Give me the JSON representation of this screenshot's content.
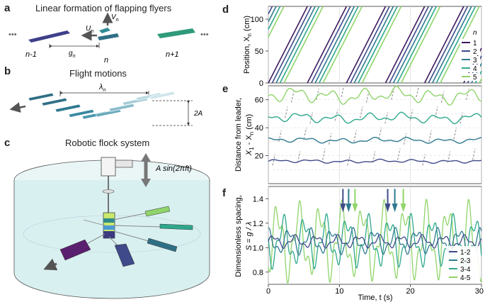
{
  "panels": {
    "a": {
      "letter": "a",
      "title": "Linear formation of flapping flyers",
      "u_label": "U",
      "v_label": "V",
      "g_label": "g",
      "n_left": "n-1",
      "n_mid": "n",
      "n_right": "n+1",
      "sub": "n",
      "ellipsis": "•••"
    },
    "b": {
      "letter": "b",
      "title": "Flight motions",
      "lambda": "λ",
      "lambda_sub": "n",
      "amp": "2A"
    },
    "c": {
      "letter": "c",
      "title": "Robotic flock system",
      "forcing": "A sin(2πft)"
    },
    "d": {
      "letter": "d",
      "ylabel": "Position, X",
      "ylabel_sub": "n",
      "ylabel_unit": " (cm)"
    },
    "e": {
      "letter": "e",
      "ylabel": "Distance from leader,",
      "ylabel2": "X",
      "ylabel2_rest": " - X",
      "ylabel2_unit": " (cm)"
    },
    "f": {
      "letter": "f",
      "ylabel": "Dimensionless spacing,",
      "ylabel2": "S = g / λ",
      "xlabel": "Time, t (s)"
    }
  },
  "colors": {
    "c1": "#3d1a5e",
    "c2": "#3f4a8a",
    "c3": "#2f7a90",
    "c4": "#2ea88c",
    "c5": "#8fd46a",
    "dash": "#a8a8a8",
    "grid": "#d9d9d9",
    "tank": "#d9f0f0"
  },
  "chart_data": [
    {
      "panel": "d",
      "type": "line",
      "xlim": [
        0,
        30
      ],
      "ylim": [
        0,
        120
      ],
      "xticks": [
        0,
        10,
        20,
        30
      ],
      "yticks": [
        0,
        50,
        100
      ],
      "legend_title": "n",
      "legend_position": "bottom-right",
      "wrap_period_s": 5.5,
      "series": [
        {
          "name": "1",
          "offset_s": 0.0
        },
        {
          "name": "2",
          "offset_s": 0.55
        },
        {
          "name": "3",
          "offset_s": 1.1
        },
        {
          "name": "4",
          "offset_s": 1.65
        },
        {
          "name": "5",
          "offset_s": 2.2
        }
      ]
    },
    {
      "panel": "e",
      "type": "line",
      "xlim": [
        0,
        30
      ],
      "ylim": [
        0,
        70
      ],
      "xticks": [
        0,
        10,
        20,
        30
      ],
      "yticks": [
        20,
        40,
        60
      ],
      "grid": true,
      "series": [
        {
          "name": "2",
          "mean": 16,
          "amp": 0.8
        },
        {
          "name": "3",
          "mean": 31,
          "amp": 1.2
        },
        {
          "name": "4",
          "mean": 47,
          "amp": 2.2
        },
        {
          "name": "5",
          "mean": 63,
          "amp": 3.5
        }
      ],
      "wavelength_lines": [
        10,
        20,
        30,
        40,
        50,
        60
      ]
    },
    {
      "panel": "f",
      "type": "line",
      "xlim": [
        0,
        30
      ],
      "ylim": [
        0.7,
        1.5
      ],
      "xticks": [
        0,
        10,
        20,
        30
      ],
      "yticks": [
        0.8,
        1.0,
        1.2,
        1.4
      ],
      "legend_position": "bottom-right",
      "series": [
        {
          "name": "1-2",
          "amp": 0.05
        },
        {
          "name": "2-3",
          "amp": 0.1
        },
        {
          "name": "3-4",
          "amp": 0.2
        },
        {
          "name": "4-5",
          "amp": 0.3
        }
      ],
      "arrows": [
        {
          "t": 10.5,
          "series": "1-2"
        },
        {
          "t": 11.3,
          "series": "2-3"
        },
        {
          "t": 12.2,
          "series": "4-5"
        },
        {
          "t": 16.8,
          "series": "1-2"
        },
        {
          "t": 17.8,
          "series": "2-3"
        },
        {
          "t": 19.0,
          "series": "4-5"
        }
      ]
    }
  ]
}
